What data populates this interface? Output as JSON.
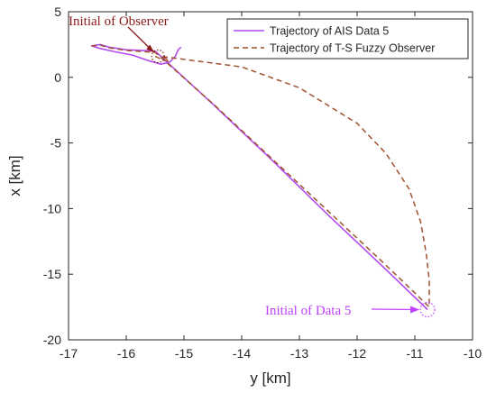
{
  "chart_data": {
    "type": "line",
    "xlabel": "y [km]",
    "ylabel": "x [km]",
    "xlim": [
      -17,
      -10
    ],
    "ylim": [
      -20,
      5
    ],
    "xticks": [
      -17,
      -16,
      -15,
      -14,
      -13,
      -12,
      -11,
      -10
    ],
    "yticks": [
      5,
      0,
      -5,
      -10,
      -15,
      -20
    ],
    "xtick_labels": [
      "-17",
      "-16",
      "-15",
      "-14",
      "-13",
      "-12",
      "-11",
      "-10"
    ],
    "ytick_labels": [
      "5",
      "0",
      "-5",
      "-10",
      "-15",
      "-20"
    ],
    "legend_position": "top-right",
    "grid": false,
    "series": [
      {
        "name": "Trajectory of AIS Data 5",
        "color": "#b24bf0",
        "style": "solid",
        "x": [
          -10.78,
          -11.5,
          -12.5,
          -13.5,
          -14.5,
          -15.5,
          -16.0,
          -16.3,
          -16.45,
          -16.6,
          -16.45,
          -16.2,
          -15.9,
          -15.6,
          -15.4,
          -15.25,
          -15.15,
          -15.1,
          -15.05
        ],
        "y": [
          -17.7,
          -14.65,
          -10.5,
          -6.2,
          -2.05,
          2.0,
          2.1,
          2.3,
          2.5,
          2.4,
          2.2,
          1.95,
          1.7,
          1.25,
          1.0,
          1.15,
          1.6,
          2.1,
          2.3
        ]
      },
      {
        "name": "Trajectory of T-S Fuzzy Observer",
        "color": "#a0522d",
        "style": "dashed",
        "x": [
          -15.5,
          -15.35,
          -15.25,
          -15.3,
          -15.4,
          -14.0,
          -13.0,
          -12.0,
          -11.5,
          -11.1,
          -10.9,
          -10.8,
          -10.75,
          -10.75,
          -11.1,
          -11.6,
          -12.5,
          -13.5,
          -14.5,
          -15.5,
          -16.0,
          -16.3,
          -16.45,
          -16.6
        ],
        "y": [
          1.6,
          1.3,
          1.2,
          1.4,
          1.6,
          0.8,
          -0.8,
          -3.5,
          -5.8,
          -8.5,
          -11.0,
          -13.5,
          -15.5,
          -17.5,
          -16.0,
          -13.9,
          -10.2,
          -6.1,
          -2.0,
          1.9,
          2.05,
          2.25,
          2.45,
          2.4
        ]
      }
    ],
    "annotations": [
      {
        "text": "Initial of Observer",
        "color": "#8b1a1a",
        "target": [
          -15.45,
          1.6
        ]
      },
      {
        "text": "Initial of Data 5",
        "color": "#c040ff",
        "target": [
          -10.78,
          -17.7
        ]
      }
    ]
  }
}
